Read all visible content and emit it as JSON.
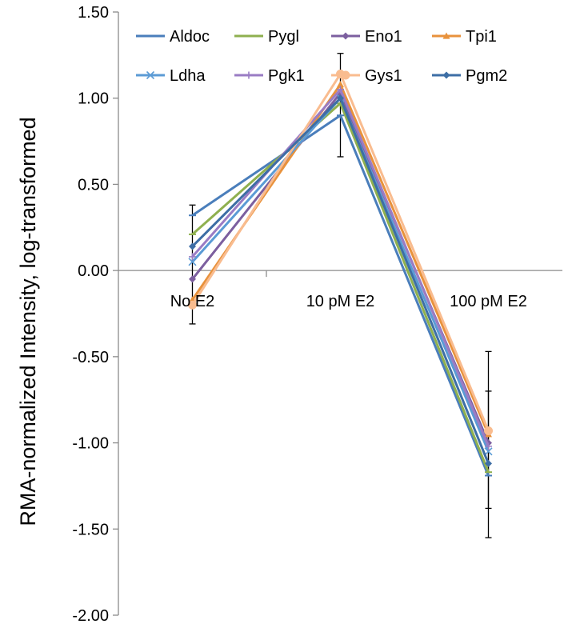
{
  "chart_data": {
    "type": "line",
    "title": "",
    "xlabel": "",
    "ylabel": "RMA-normalized Intensity, log-transformed",
    "categories": [
      "No E2",
      "10 pM E2",
      "100 pM E2"
    ],
    "ylim": [
      -2.0,
      1.5
    ],
    "ytick_values": [
      1.5,
      1.0,
      0.5,
      0.0,
      -0.5,
      -1.0,
      -1.5,
      -2.0
    ],
    "ytick_labels": [
      "1.50",
      "1.00",
      "0.50",
      "0.00",
      "-0.50",
      "-1.00",
      "-1.50",
      "-2.00"
    ],
    "grid": false,
    "legend_position": "top",
    "series": [
      {
        "name": "Aldoc",
        "values": [
          0.32,
          0.9,
          -1.19
        ],
        "color": "#4a7ebb",
        "marker": "dash"
      },
      {
        "name": "Pygl",
        "values": [
          0.21,
          0.97,
          -1.17
        ],
        "color": "#8fb04f",
        "marker": "dash"
      },
      {
        "name": "Eno1",
        "values": [
          -0.05,
          1.03,
          -1.0
        ],
        "color": "#7c5f9f",
        "marker": "diamond"
      },
      {
        "name": "Tpi1",
        "values": [
          -0.17,
          1.08,
          -0.95
        ],
        "color": "#e8923c",
        "marker": "triangle"
      },
      {
        "name": "Ldha",
        "values": [
          0.05,
          1.0,
          -1.05
        ],
        "color": "#5b9bd5",
        "marker": "x"
      },
      {
        "name": "Pgk1",
        "values": [
          0.08,
          1.05,
          -1.02
        ],
        "color": "#9a7cc4",
        "marker": "plus"
      },
      {
        "name": "Gys1",
        "values": [
          -0.2,
          1.14,
          -0.93
        ],
        "color": "#f9bc8f",
        "marker": "circle"
      },
      {
        "name": "Pgm2",
        "values": [
          0.14,
          1.0,
          -1.12
        ],
        "color": "#3d6ea5",
        "marker": "diamond"
      }
    ],
    "error_bars": [
      {
        "category": "No E2",
        "low": -0.31,
        "high": 0.38
      },
      {
        "category": "10 pM E2",
        "low": 0.66,
        "high": 1.26
      },
      {
        "category": "100 pM E2",
        "low": -1.55,
        "high": -0.47
      },
      {
        "category": "100 pM E2",
        "low": -1.38,
        "high": -0.7
      }
    ]
  }
}
